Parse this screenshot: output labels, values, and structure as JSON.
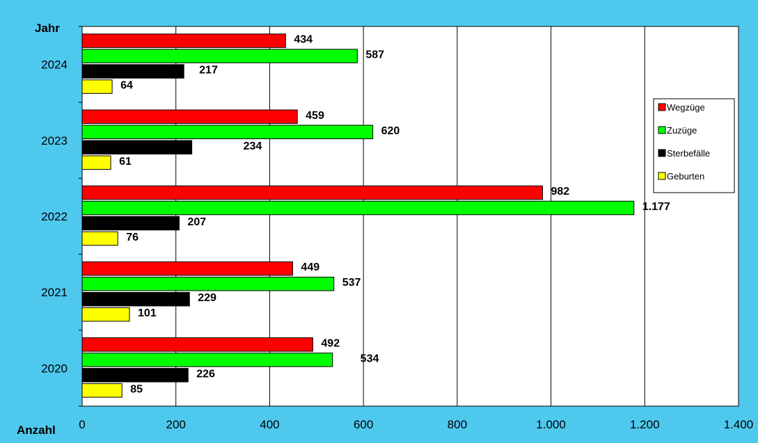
{
  "colors": {
    "background": "#4fc8ee",
    "plot_area": "#ffffff",
    "gridline": "#000000"
  },
  "chart_data": {
    "type": "bar",
    "orientation": "horizontal",
    "ylabel": "Jahr",
    "xlabel": "Anzahl",
    "categories": [
      "2024",
      "2023",
      "2022",
      "2021",
      "2020"
    ],
    "xlim": [
      0,
      1400
    ],
    "x_ticks": [
      0,
      200,
      400,
      600,
      800,
      1000,
      1200,
      1400
    ],
    "x_tick_labels": [
      "0",
      "200",
      "400",
      "600",
      "800",
      "1.000",
      "1.200",
      "1.400"
    ],
    "grid": "vertical",
    "legend_position": "right",
    "series": [
      {
        "name": "Wegzüge",
        "color": "#ff0000",
        "values": [
          434,
          459,
          982,
          449,
          492
        ],
        "labels": [
          "434",
          "459",
          "982",
          "449",
          "492"
        ]
      },
      {
        "name": "Zuzüge",
        "color": "#00ff00",
        "values": [
          587,
          620,
          1177,
          537,
          534
        ],
        "labels": [
          "587",
          "620",
          "1.177",
          "537",
          "534"
        ]
      },
      {
        "name": "Sterbefälle",
        "color": "#000000",
        "values": [
          217,
          234,
          207,
          229,
          226
        ],
        "labels": [
          "217",
          "234",
          "207",
          "229",
          "226"
        ]
      },
      {
        "name": "Geburten",
        "color": "#ffff00",
        "values": [
          64,
          61,
          76,
          101,
          85
        ],
        "labels": [
          "64",
          "61",
          "76",
          "101",
          "85"
        ]
      }
    ]
  }
}
